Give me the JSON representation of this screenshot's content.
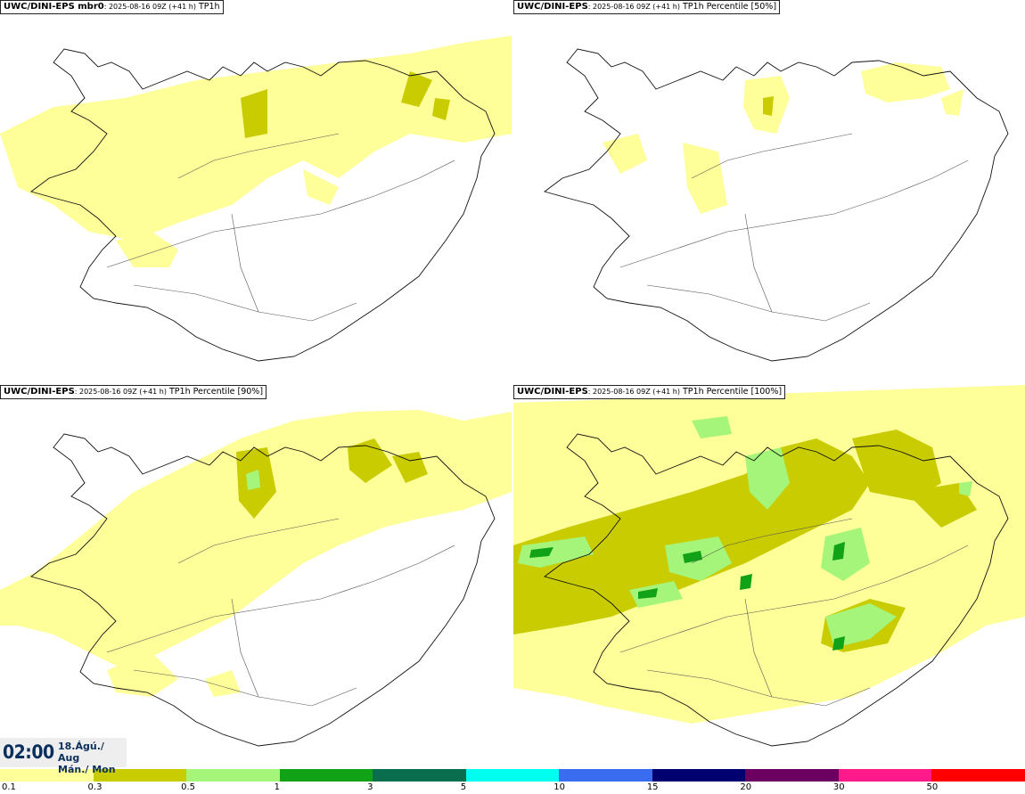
{
  "panels": [
    {
      "model": "UWC/DINI-EPS mbr0",
      "run": ": 2025-08-16 09Z (+41 h)",
      "field": " TP1h"
    },
    {
      "model": "UWC/DINI-EPS",
      "run": ": 2025-08-16 09Z (+41 h)",
      "field": " TP1h Percentile [50%]"
    },
    {
      "model": "UWC/DINI-EPS",
      "run": ": 2025-08-16 09Z (+41 h)",
      "field": " TP1h Percentile [90%]"
    },
    {
      "model": "UWC/DINI-EPS",
      "run": ": 2025-08-16 09Z (+41 h)",
      "field": " TP1h Percentile [100%]"
    }
  ],
  "valid_time": {
    "hour": "02:00",
    "date_line1": "18.Ágú./ Aug",
    "date_line2": "Mán./ Mon"
  },
  "legend": {
    "labels": [
      "0.1",
      "0.3",
      "0.5",
      "1",
      "3",
      "5",
      "10",
      "15",
      "20",
      "30",
      "50"
    ],
    "colors": [
      "#ffff99",
      "#c8cc00",
      "#a4f57a",
      "#12a218",
      "#0a6e4e",
      "#00ffee",
      "#3a6cf0",
      "#000070",
      "#6b0060",
      "#ff1a8c",
      "#ff0000"
    ]
  }
}
